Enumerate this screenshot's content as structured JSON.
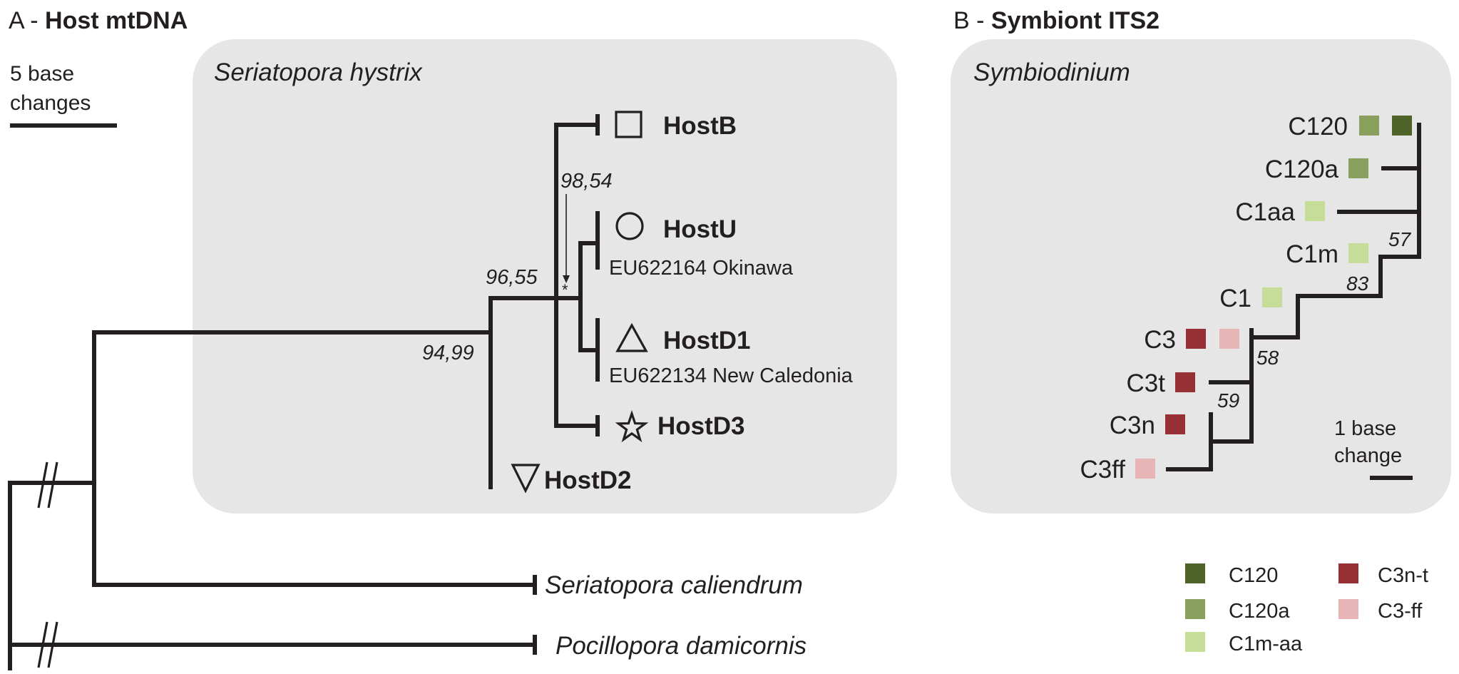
{
  "panel_a": {
    "label_prefix": "A -",
    "label_bold": "Host mtDNA",
    "scale_label_1": "5 base",
    "scale_label_2": "changes",
    "clade_label": "Seriatopora hystrix",
    "taxa": {
      "hostb": "HostB",
      "hostu": "HostU",
      "eu_okinawa": "EU622164 Okinawa",
      "hostd1": "HostD1",
      "eu_newcal": "EU622134 New Caledonia",
      "hostd3": "HostD3",
      "hostd2": "HostD2",
      "caliendrum": "Seriatopora caliendrum",
      "damicornis": "Pocillopora damicornis"
    },
    "supports": {
      "s9854": "98,54",
      "s9655": "96,55",
      "s9499": "94,99",
      "star": "*"
    },
    "symbols": {
      "hostb": "square-outline",
      "hostu": "circle-outline",
      "hostd1": "triangle-outline",
      "hostd3": "star-outline",
      "hostd2": "inverted-triangle-outline"
    }
  },
  "panel_b": {
    "label_prefix": "B -",
    "label_bold": "Symbiont ITS2",
    "clade_label": "Symbiodinium",
    "taxa": {
      "c120": "C120",
      "c120a": "C120a",
      "c1aa": "C1aa",
      "c1m": "C1m",
      "c1": "C1",
      "c3": "C3",
      "c3t": "C3t",
      "c3n": "C3n",
      "c3ff": "C3ff"
    },
    "supports": {
      "s57": "57",
      "s83": "83",
      "s58": "58",
      "s59": "59"
    },
    "scale_label_1": "1 base",
    "scale_label_2": "change"
  },
  "legend": {
    "items": [
      {
        "label": "C120",
        "color": "#4f6228"
      },
      {
        "label": "C120a",
        "color": "#8aa05f"
      },
      {
        "label": "C1m-aa",
        "color": "#c6dd9a"
      },
      {
        "label": "C3n-t",
        "color": "#963034"
      },
      {
        "label": "C3-ff",
        "color": "#e8b5b6"
      }
    ]
  },
  "colors": {
    "panel_bg": "#e6e6e6",
    "line": "#231f20",
    "c120": "#4f6228",
    "c120a": "#8aa05f",
    "c1maa": "#c6dd9a",
    "c3nt": "#963034",
    "c3ff": "#e8b5b6"
  }
}
